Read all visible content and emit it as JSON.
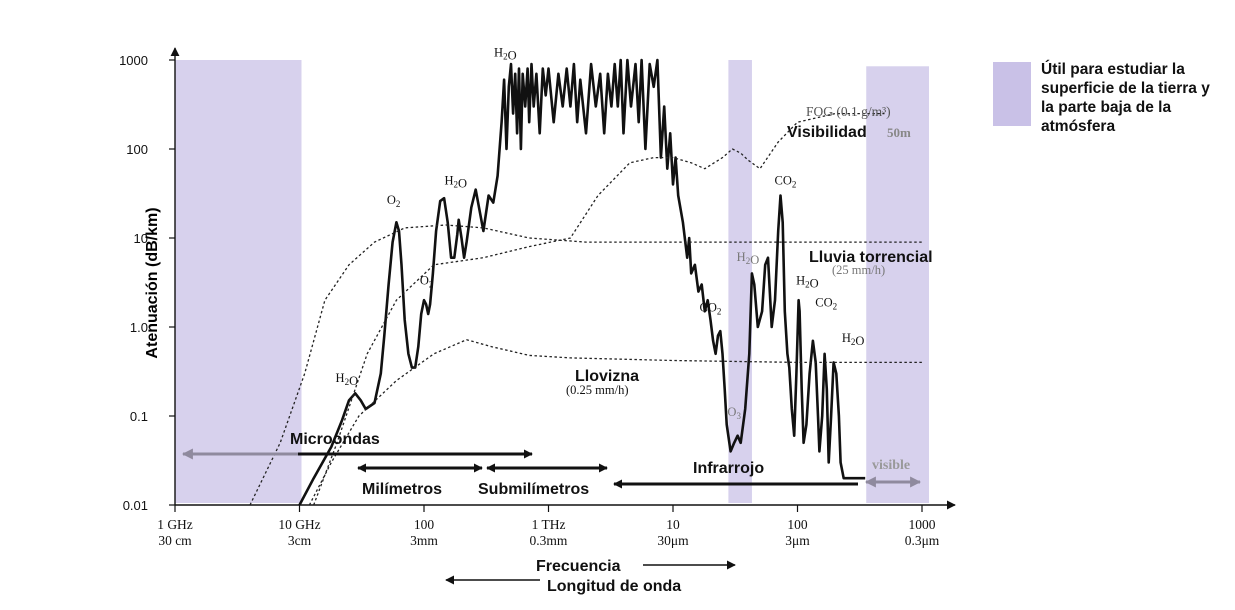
{
  "colors": {
    "band": "#c9c1e7",
    "band_alpha": 0.75,
    "line": "#111111",
    "dotted": "#222222",
    "gray": "#888888"
  },
  "legend": {
    "text": "Útil para estudiar la superficie de la tierra y la parte baja de la atmósfera"
  },
  "chart_data": {
    "type": "line",
    "xscale": "log",
    "yscale": "log",
    "xlim": [
      1,
      1000000
    ],
    "ylim": [
      0.01,
      1000
    ],
    "ylabel": "Atenuación (dB/km)",
    "xlabel": "Frecuencia",
    "x2label": "Longitud de onda",
    "yticks": [
      {
        "v": 0.01,
        "label": "0.01"
      },
      {
        "v": 0.1,
        "label": "0.1"
      },
      {
        "v": 1,
        "label": "1.0"
      },
      {
        "v": 10,
        "label": "10"
      },
      {
        "v": 100,
        "label": "100"
      },
      {
        "v": 1000,
        "label": "1000"
      }
    ],
    "xticks": [
      {
        "v": 1,
        "freq": "1 GHz",
        "wave": "30 cm"
      },
      {
        "v": 10,
        "freq": "10  GHz",
        "wave": "3cm"
      },
      {
        "v": 100,
        "freq": "100",
        "wave": "3mm"
      },
      {
        "v": 1000,
        "freq": "1  THz",
        "wave": "0.3mm"
      },
      {
        "v": 10000,
        "freq": "10",
        "wave": "30μm"
      },
      {
        "v": 100000,
        "freq": "100",
        "wave": "3μm"
      },
      {
        "v": 1000000,
        "freq": "1000",
        "wave": "0.3μm"
      }
    ],
    "bands": [
      {
        "x0": 1,
        "x1": 10,
        "y_top": 1000
      },
      {
        "x0": 30000,
        "x1": 40000,
        "y_top": 1000
      },
      {
        "x0": 350000,
        "x1": 1000000,
        "y_top": 850
      }
    ],
    "series": [
      {
        "style": "solid",
        "points": [
          [
            10,
            0.01
          ],
          [
            13,
            0.02
          ],
          [
            18,
            0.045
          ],
          [
            22,
            0.09
          ],
          [
            25,
            0.15
          ],
          [
            28,
            0.18
          ],
          [
            31,
            0.15
          ],
          [
            34,
            0.12
          ],
          [
            40,
            0.14
          ],
          [
            45,
            0.3
          ],
          [
            48,
            0.8
          ],
          [
            52,
            3
          ],
          [
            56,
            9
          ],
          [
            60,
            15
          ],
          [
            63,
            12
          ],
          [
            66,
            5
          ],
          [
            70,
            1.2
          ],
          [
            75,
            0.5
          ],
          [
            80,
            0.35
          ],
          [
            85,
            0.35
          ],
          [
            90,
            0.6
          ],
          [
            95,
            1.4
          ],
          [
            100,
            2
          ],
          [
            104,
            1.8
          ],
          [
            108,
            1.4
          ],
          [
            112,
            1.8
          ],
          [
            118,
            4
          ],
          [
            125,
            12
          ],
          [
            135,
            26
          ],
          [
            145,
            28
          ],
          [
            155,
            15
          ],
          [
            165,
            6
          ],
          [
            175,
            6
          ],
          [
            185,
            11
          ],
          [
            190,
            16
          ],
          [
            200,
            10
          ],
          [
            210,
            6
          ],
          [
            220,
            9
          ],
          [
            240,
            22
          ],
          [
            260,
            35
          ],
          [
            280,
            20
          ],
          [
            300,
            12
          ],
          [
            330,
            30
          ],
          [
            360,
            25
          ],
          [
            390,
            50
          ],
          [
            420,
            200
          ],
          [
            440,
            600
          ],
          [
            460,
            100
          ],
          [
            480,
            500
          ],
          [
            500,
            900
          ],
          [
            520,
            250
          ],
          [
            540,
            700
          ],
          [
            560,
            150
          ],
          [
            580,
            800
          ],
          [
            600,
            100
          ],
          [
            620,
            700
          ],
          [
            650,
            300
          ],
          [
            680,
            800
          ],
          [
            700,
            200
          ],
          [
            730,
            900
          ],
          [
            760,
            300
          ],
          [
            800,
            700
          ],
          [
            850,
            150
          ],
          [
            900,
            800
          ],
          [
            950,
            400
          ],
          [
            1000,
            800
          ],
          [
            1100,
            200
          ],
          [
            1200,
            700
          ],
          [
            1300,
            300
          ],
          [
            1400,
            800
          ],
          [
            1500,
            300
          ],
          [
            1600,
            900
          ],
          [
            1700,
            200
          ],
          [
            1800,
            600
          ],
          [
            2000,
            150
          ],
          [
            2200,
            900
          ],
          [
            2400,
            300
          ],
          [
            2600,
            700
          ],
          [
            2800,
            150
          ],
          [
            3000,
            700
          ],
          [
            3200,
            300
          ],
          [
            3400,
            900
          ],
          [
            3600,
            300
          ],
          [
            3800,
            1000
          ],
          [
            4000,
            150
          ],
          [
            4300,
            1000
          ],
          [
            4600,
            300
          ],
          [
            5000,
            900
          ],
          [
            5300,
            200
          ],
          [
            5600,
            1000
          ],
          [
            6000,
            100
          ],
          [
            6500,
            900
          ],
          [
            7000,
            500
          ],
          [
            7500,
            1000
          ],
          [
            8000,
            80
          ],
          [
            8500,
            300
          ],
          [
            9000,
            60
          ],
          [
            9500,
            150
          ],
          [
            10000,
            40
          ],
          [
            10500,
            80
          ],
          [
            11000,
            30
          ],
          [
            12000,
            15
          ],
          [
            13000,
            6
          ],
          [
            13500,
            10
          ],
          [
            14000,
            4
          ],
          [
            15000,
            5
          ],
          [
            16000,
            2.5
          ],
          [
            17000,
            3
          ],
          [
            18000,
            1.5
          ],
          [
            19000,
            2
          ],
          [
            20000,
            1.2
          ],
          [
            21000,
            0.7
          ],
          [
            22000,
            0.5
          ],
          [
            23000,
            0.8
          ],
          [
            24000,
            0.9
          ],
          [
            25000,
            0.5
          ],
          [
            26000,
            0.2
          ],
          [
            27000,
            0.08
          ],
          [
            29000,
            0.04
          ],
          [
            31000,
            0.05
          ],
          [
            33000,
            0.06
          ],
          [
            35000,
            0.05
          ],
          [
            38000,
            0.12
          ],
          [
            41000,
            0.5
          ],
          [
            43000,
            4
          ],
          [
            45000,
            3
          ],
          [
            48000,
            1
          ],
          [
            52000,
            1.5
          ],
          [
            55000,
            5
          ],
          [
            58000,
            6
          ],
          [
            62000,
            1
          ],
          [
            66000,
            2
          ],
          [
            70000,
            12
          ],
          [
            73000,
            30
          ],
          [
            76000,
            15
          ],
          [
            79000,
            1.5
          ],
          [
            83000,
            0.5
          ],
          [
            86000,
            0.35
          ],
          [
            90000,
            0.12
          ],
          [
            94000,
            0.06
          ],
          [
            98000,
            0.3
          ],
          [
            102000,
            2
          ],
          [
            104000,
            1.5
          ],
          [
            108000,
            0.2
          ],
          [
            112000,
            0.05
          ],
          [
            118000,
            0.08
          ],
          [
            125000,
            0.3
          ],
          [
            133000,
            0.7
          ],
          [
            140000,
            0.4
          ],
          [
            146000,
            0.1
          ],
          [
            150000,
            0.04
          ],
          [
            158000,
            0.1
          ],
          [
            165000,
            0.5
          ],
          [
            172000,
            0.2
          ],
          [
            178000,
            0.03
          ],
          [
            186000,
            0.1
          ],
          [
            195000,
            0.4
          ],
          [
            205000,
            0.3
          ],
          [
            215000,
            0.1
          ],
          [
            222000,
            0.03
          ],
          [
            235000,
            0.02
          ],
          [
            250000,
            0.02
          ],
          [
            300000,
            0.02
          ],
          [
            350000,
            0.02
          ]
        ]
      },
      {
        "style": "dotted",
        "name": "Lluvia torrencial",
        "points": [
          [
            4,
            0.01
          ],
          [
            7,
            0.05
          ],
          [
            11,
            0.3
          ],
          [
            16,
            2
          ],
          [
            25,
            5
          ],
          [
            40,
            9
          ],
          [
            70,
            13
          ],
          [
            150,
            14
          ],
          [
            300,
            13
          ],
          [
            700,
            10
          ],
          [
            2000,
            9
          ],
          [
            10000,
            9
          ],
          [
            100000,
            9
          ],
          [
            1000000,
            9
          ]
        ]
      },
      {
        "style": "dotted",
        "name": "Llovizna",
        "points": [
          [
            12,
            0.01
          ],
          [
            18,
            0.03
          ],
          [
            30,
            0.1
          ],
          [
            60,
            0.25
          ],
          [
            120,
            0.5
          ],
          [
            220,
            0.72
          ],
          [
            350,
            0.6
          ],
          [
            700,
            0.48
          ],
          [
            1500,
            0.45
          ],
          [
            10000,
            0.42
          ],
          [
            100000,
            0.4
          ],
          [
            1000000,
            0.4
          ]
        ]
      },
      {
        "style": "dotted",
        "name": "Visibilidad",
        "points": [
          [
            13,
            0.01
          ],
          [
            20,
            0.05
          ],
          [
            35,
            0.5
          ],
          [
            60,
            2
          ],
          [
            120,
            5
          ],
          [
            300,
            6
          ],
          [
            700,
            8
          ],
          [
            1500,
            10
          ],
          [
            2500,
            30
          ],
          [
            4500,
            70
          ],
          [
            7000,
            80
          ],
          [
            10000,
            80
          ],
          [
            14000,
            70
          ],
          [
            18000,
            60
          ],
          [
            25000,
            80
          ],
          [
            30000,
            100
          ],
          [
            35000,
            90
          ],
          [
            40000,
            75
          ],
          [
            50000,
            60
          ],
          [
            70000,
            120
          ],
          [
            100000,
            200
          ],
          [
            200000,
            250
          ],
          [
            500000,
            250
          ]
        ]
      }
    ],
    "annotations": [
      {
        "key": "h2o_a",
        "text": "H2O",
        "x": 24,
        "y": 0.24
      },
      {
        "key": "o2_a",
        "text": "O2",
        "x": 57,
        "y": 24
      },
      {
        "key": "o2_b",
        "text": "O2",
        "x": 105,
        "y": 3.0
      },
      {
        "key": "h2o_b",
        "text": "H2O",
        "x": 180,
        "y": 40
      },
      {
        "key": "h2o_c",
        "text": "H2O",
        "x": 450,
        "y": 1100
      },
      {
        "key": "co2_a",
        "text": "CO2",
        "x": 20000,
        "y": 1.5
      },
      {
        "key": "h2o_d",
        "text": "H2O",
        "x": 40000,
        "y": 5.5
      },
      {
        "key": "o3",
        "text": "O3",
        "x": 31000,
        "y": 0.1
      },
      {
        "key": "co2_b",
        "text": "CO2",
        "x": 80000,
        "y": 40
      },
      {
        "key": "h2o_e",
        "text": "H2O",
        "x": 120000,
        "y": 3.0
      },
      {
        "key": "co2_c",
        "text": "CO2",
        "x": 170000,
        "y": 1.7
      },
      {
        "key": "h2o_f",
        "text": "H2O",
        "x": 280000,
        "y": 0.68
      }
    ],
    "labels": {
      "fog": "FOG (0.1 g/m³)",
      "visibilidad": "Visibilidad",
      "visib50": "50m",
      "lluvia": "Lluvia torrencial",
      "lluvia_rate": "(25  mm/h)",
      "llovizna": "Llovizna",
      "llovizna_rate": "(0.25  mm/h)",
      "microondas": "Microondas",
      "milimetros": "Milímetros",
      "submilimetros": "Submilímetros",
      "infrarrojo": "Infrarrojo",
      "visible": "visible"
    }
  }
}
